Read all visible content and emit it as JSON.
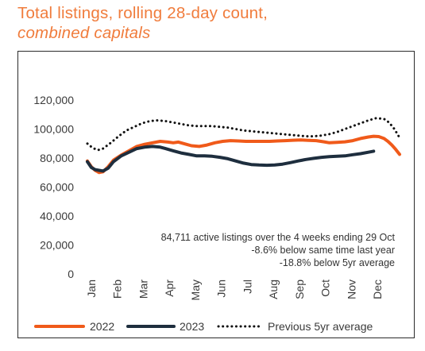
{
  "title_line1": "Total listings, rolling 28-day count,",
  "title_line2": "combined capitals",
  "chart_data": {
    "type": "line",
    "ylim": [
      0,
      120000
    ],
    "y_ticks": [
      "120,000",
      "100,000",
      "80,000",
      "60,000",
      "40,000",
      "20,000",
      "0"
    ],
    "y_tick_values": [
      120000,
      100000,
      80000,
      60000,
      40000,
      20000,
      0
    ],
    "x_ticks": [
      "Jan",
      "Feb",
      "Mar",
      "Apr",
      "May",
      "Jun",
      "Jul",
      "Aug",
      "Sep",
      "Oct",
      "Nov",
      "Dec"
    ],
    "x_range": [
      0,
      12
    ],
    "grid": false,
    "legend_position": "bottom",
    "annotation": [
      "84,711 active listings over the 4 weeks ending 29 Oct",
      "-8.6% below same time last year",
      "-18.8% below 5yr average"
    ],
    "series": [
      {
        "name": "2022",
        "color": "#f05a1a",
        "style": "solid",
        "x": [
          0,
          0.15,
          0.3,
          0.45,
          0.6,
          0.8,
          1.0,
          1.3,
          1.6,
          1.9,
          2.2,
          2.5,
          2.8,
          3.1,
          3.3,
          3.5,
          3.8,
          4.0,
          4.3,
          4.6,
          4.9,
          5.2,
          5.5,
          5.8,
          6.1,
          6.4,
          6.7,
          7.0,
          7.3,
          7.6,
          7.9,
          8.2,
          8.5,
          8.8,
          9.1,
          9.3,
          9.6,
          9.9,
          10.2,
          10.5,
          10.8,
          11.0,
          11.2,
          11.4,
          11.55,
          11.7,
          11.85,
          12.0
        ],
        "values": [
          78000,
          74000,
          71500,
          70000,
          70500,
          74000,
          78500,
          82000,
          85000,
          88000,
          89500,
          90500,
          91500,
          91000,
          90500,
          91000,
          89500,
          88500,
          88000,
          89000,
          90500,
          91500,
          92000,
          91800,
          91500,
          91500,
          91500,
          91500,
          91800,
          92000,
          92300,
          92500,
          92200,
          92000,
          91200,
          90500,
          90800,
          91200,
          92000,
          93500,
          94500,
          95000,
          94800,
          93500,
          91500,
          89000,
          86000,
          82500
        ]
      },
      {
        "name": "2023",
        "color": "#1e2e3e",
        "style": "solid",
        "x": [
          0,
          0.15,
          0.3,
          0.45,
          0.6,
          0.8,
          1.0,
          1.3,
          1.6,
          1.9,
          2.2,
          2.5,
          2.8,
          3.0,
          3.3,
          3.6,
          3.9,
          4.2,
          4.5,
          4.8,
          5.1,
          5.4,
          5.7,
          6.0,
          6.3,
          6.6,
          6.9,
          7.2,
          7.5,
          7.8,
          8.1,
          8.4,
          8.7,
          9.0,
          9.3,
          9.6,
          9.9,
          10.2,
          10.5,
          10.8,
          11.0
        ],
        "values": [
          77500,
          73500,
          72000,
          71500,
          71000,
          73000,
          77500,
          81500,
          84000,
          86500,
          87500,
          88000,
          87500,
          86500,
          85000,
          83500,
          82500,
          81500,
          81500,
          81200,
          80500,
          79500,
          78000,
          76500,
          75500,
          75200,
          75000,
          75200,
          75800,
          76800,
          78000,
          79000,
          79800,
          80500,
          81000,
          81200,
          81500,
          82300,
          83000,
          84000,
          84711
        ]
      },
      {
        "name": "Previous 5yr average",
        "color": "#111111",
        "style": "dotted",
        "x": [
          0,
          0.2,
          0.4,
          0.6,
          0.9,
          1.2,
          1.5,
          1.8,
          2.1,
          2.4,
          2.7,
          3.0,
          3.3,
          3.6,
          3.9,
          4.2,
          4.5,
          4.8,
          5.1,
          5.4,
          5.7,
          6.0,
          6.3,
          6.6,
          6.9,
          7.2,
          7.5,
          7.8,
          8.1,
          8.4,
          8.7,
          9.0,
          9.3,
          9.6,
          9.9,
          10.2,
          10.5,
          10.8,
          11.1,
          11.4,
          11.6,
          11.8,
          12.0
        ],
        "values": [
          90000,
          87000,
          85500,
          86500,
          90500,
          95000,
          99000,
          101500,
          104000,
          105500,
          106000,
          105500,
          104500,
          103500,
          102500,
          102000,
          102000,
          102000,
          101500,
          101000,
          100000,
          99000,
          98500,
          98000,
          97500,
          97000,
          96500,
          96000,
          95500,
          95000,
          95000,
          95500,
          96500,
          98000,
          100000,
          102000,
          104000,
          106000,
          107500,
          107000,
          104500,
          100000,
          94000
        ]
      }
    ]
  }
}
